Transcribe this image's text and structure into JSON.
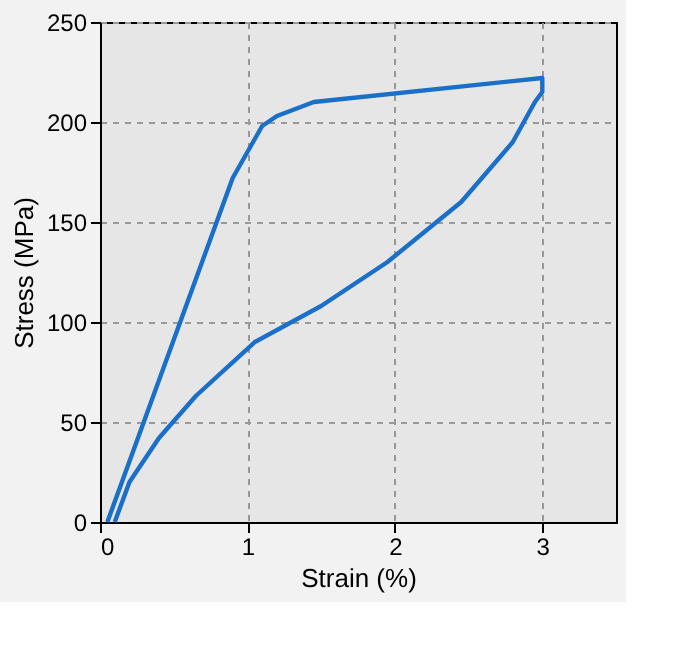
{
  "chart_data": {
    "type": "line",
    "xlabel": "Strain (%)",
    "ylabel": "Stress (MPa)",
    "series": [
      {
        "color": "#1a6fc9",
        "x": [
          0.05,
          0.9,
          1.0,
          1.1,
          1.2,
          1.45,
          3.0,
          3.0,
          2.95,
          2.8,
          2.45,
          1.95,
          1.5,
          1.05,
          0.65,
          0.4,
          0.2,
          0.1
        ],
        "values": [
          0,
          172,
          185,
          198,
          203,
          210,
          222,
          215,
          210,
          190,
          160,
          130,
          108,
          90,
          63,
          42,
          20,
          0
        ]
      }
    ],
    "xlim": [
      0,
      3.5
    ],
    "xticks": [
      0,
      1,
      2,
      3
    ],
    "ylim": [
      0,
      250
    ],
    "yticks": [
      0,
      50,
      100,
      150,
      200,
      250
    ],
    "grid": true
  }
}
